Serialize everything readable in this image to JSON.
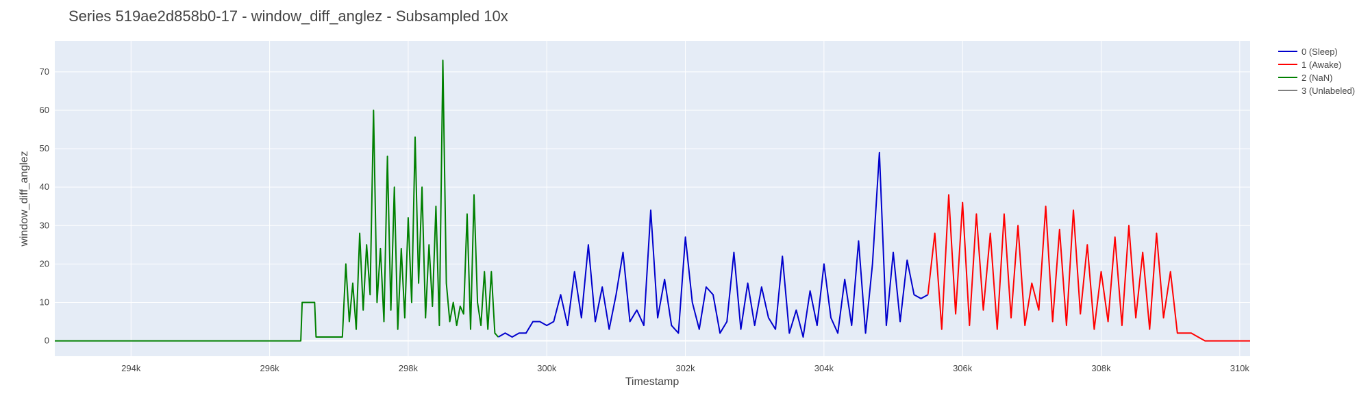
{
  "chart_data": {
    "type": "line",
    "title": "Series 519ae2d858b0-17 - window_diff_anglez - Subsampled 10x",
    "xlabel": "Timestamp",
    "ylabel": "window_diff_anglez",
    "xlim": [
      292900,
      310150
    ],
    "ylim": [
      -4,
      78
    ],
    "x_ticks": [
      294000,
      296000,
      298000,
      300000,
      302000,
      304000,
      306000,
      308000,
      310000
    ],
    "x_tick_labels": [
      "294k",
      "296k",
      "298k",
      "300k",
      "302k",
      "304k",
      "306k",
      "308k",
      "310k"
    ],
    "y_ticks": [
      0,
      10,
      20,
      30,
      40,
      50,
      60,
      70
    ],
    "y_tick_labels": [
      "0",
      "10",
      "20",
      "30",
      "40",
      "50",
      "60",
      "70"
    ],
    "grid": true,
    "legend_position": "top-right",
    "plot_background": "#e5ecf6",
    "series": [
      {
        "name": "0 (Sleep)",
        "color": "#0000cc",
        "x": [
          299300,
          299400,
          299500,
          299600,
          299700,
          299800,
          299900,
          300000,
          300100,
          300200,
          300300,
          300400,
          300500,
          300600,
          300700,
          300800,
          300900,
          301000,
          301100,
          301200,
          301300,
          301400,
          301500,
          301600,
          301700,
          301800,
          301900,
          302000,
          302100,
          302200,
          302300,
          302400,
          302500,
          302600,
          302700,
          302800,
          302900,
          303000,
          303100,
          303200,
          303300,
          303400,
          303500,
          303600,
          303700,
          303800,
          303900,
          304000,
          304100,
          304200,
          304300,
          304400,
          304500,
          304600,
          304700,
          304800,
          304900,
          305000,
          305100,
          305200,
          305300,
          305400,
          305500
        ],
        "y": [
          1,
          2,
          1,
          2,
          2,
          5,
          5,
          4,
          5,
          12,
          4,
          18,
          6,
          25,
          5,
          14,
          3,
          12,
          23,
          5,
          8,
          4,
          34,
          6,
          16,
          4,
          2,
          27,
          10,
          3,
          14,
          12,
          2,
          5,
          23,
          3,
          15,
          4,
          14,
          6,
          3,
          22,
          2,
          8,
          1,
          13,
          4,
          20,
          6,
          2,
          16,
          4,
          26,
          2,
          20,
          49,
          4,
          23,
          5,
          21,
          12,
          11,
          12
        ]
      },
      {
        "name": "1 (Awake)",
        "color": "#ff0000",
        "x": [
          305500,
          305600,
          305700,
          305800,
          305900,
          306000,
          306100,
          306200,
          306300,
          306400,
          306500,
          306600,
          306700,
          306800,
          306900,
          307000,
          307100,
          307200,
          307300,
          307400,
          307500,
          307600,
          307700,
          307800,
          307900,
          308000,
          308100,
          308200,
          308300,
          308400,
          308500,
          308600,
          308700,
          308800,
          308900,
          309000,
          309100,
          309200,
          309300,
          309400,
          309500,
          309600,
          309700,
          309800,
          309900,
          310000,
          310150
        ],
        "y": [
          12,
          28,
          3,
          38,
          7,
          36,
          4,
          33,
          8,
          28,
          3,
          33,
          6,
          30,
          4,
          15,
          8,
          35,
          5,
          29,
          4,
          34,
          7,
          25,
          3,
          18,
          5,
          27,
          4,
          30,
          6,
          23,
          3,
          28,
          6,
          18,
          2,
          2,
          2,
          1,
          0,
          0,
          0,
          0,
          0,
          0,
          0
        ]
      },
      {
        "name": "2 (NaN)",
        "color": "#008000",
        "x": [
          292900,
          296450,
          296470,
          296650,
          296670,
          297050,
          297100,
          297150,
          297200,
          297250,
          297300,
          297350,
          297400,
          297450,
          297500,
          297550,
          297600,
          297650,
          297700,
          297750,
          297800,
          297850,
          297900,
          297950,
          298000,
          298050,
          298100,
          298150,
          298200,
          298250,
          298300,
          298350,
          298400,
          298450,
          298500,
          298550,
          298600,
          298650,
          298700,
          298750,
          298800,
          298850,
          298900,
          298950,
          299000,
          299050,
          299100,
          299150,
          299200,
          299250,
          299300
        ],
        "y": [
          0,
          0,
          10,
          10,
          1,
          1,
          20,
          5,
          15,
          3,
          28,
          8,
          25,
          12,
          60,
          10,
          24,
          5,
          48,
          8,
          40,
          3,
          24,
          6,
          32,
          10,
          53,
          15,
          40,
          6,
          25,
          9,
          35,
          4,
          73,
          15,
          5,
          10,
          4,
          9,
          7,
          33,
          3,
          38,
          10,
          4,
          18,
          3,
          18,
          2,
          1
        ]
      },
      {
        "name": "3 (Unlabeled)",
        "color": "#808080",
        "x": [],
        "y": []
      }
    ]
  }
}
